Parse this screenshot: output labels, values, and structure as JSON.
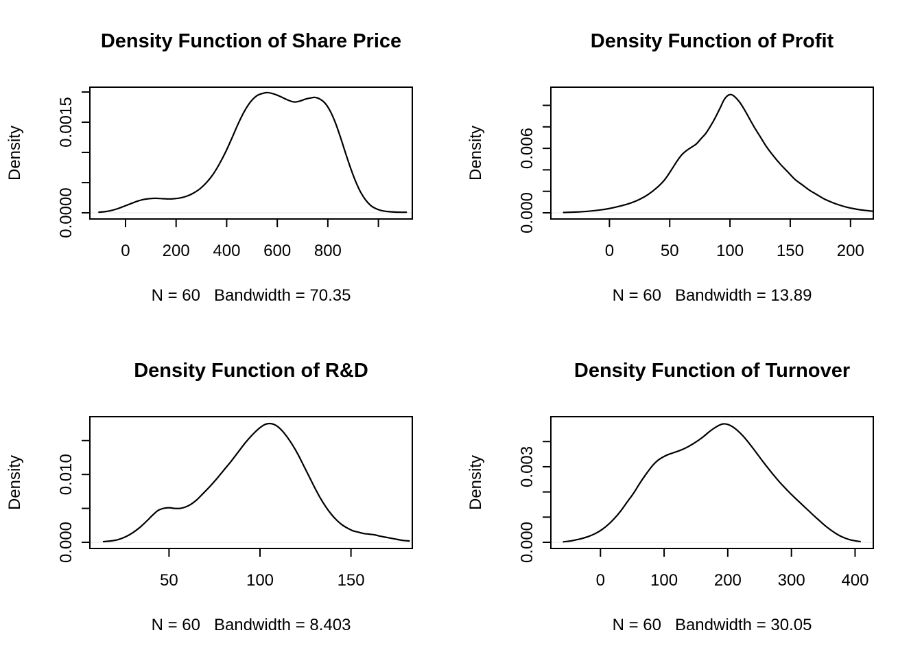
{
  "figure_title": "Density plots 2x2 panel figure",
  "colors": {
    "foreground": "#000000",
    "background": "#ffffff",
    "zero_baseline": "#ededed"
  },
  "chart_data": [
    {
      "id": "share-price",
      "type": "line",
      "title": "Density Function of Share Price",
      "ylabel": "Density",
      "subtitle": "N = 60   Bandwidth = 70.35",
      "n": 60,
      "bandwidth": 70.35,
      "legend": "none",
      "grid": "off",
      "xlim": [
        -141,
        1134
      ],
      "ylim": [
        -0.000102,
        0.00208
      ],
      "x_ticks": [
        {
          "v": 0,
          "label": "0"
        },
        {
          "v": 200,
          "label": "200"
        },
        {
          "v": 400,
          "label": "400"
        },
        {
          "v": 600,
          "label": "600"
        },
        {
          "v": 800,
          "label": "800"
        },
        {
          "v": 1000,
          "label": ""
        }
      ],
      "y_ticks": [
        {
          "v": 0.0,
          "label": "0.0000"
        },
        {
          "v": 0.0005,
          "label": ""
        },
        {
          "v": 0.001,
          "label": ""
        },
        {
          "v": 0.0015,
          "label": "0.0015"
        },
        {
          "v": 0.002,
          "label": ""
        }
      ],
      "curve": [
        [
          -105,
          1e-05
        ],
        [
          -80,
          2e-05
        ],
        [
          -55,
          4e-05
        ],
        [
          -30,
          7e-05
        ],
        [
          -5,
          0.00011
        ],
        [
          20,
          0.00015
        ],
        [
          45,
          0.00019
        ],
        [
          70,
          0.00022
        ],
        [
          95,
          0.000235
        ],
        [
          120,
          0.00024
        ],
        [
          145,
          0.000235
        ],
        [
          170,
          0.00023
        ],
        [
          195,
          0.000235
        ],
        [
          220,
          0.00025
        ],
        [
          245,
          0.00028
        ],
        [
          270,
          0.00033
        ],
        [
          295,
          0.0004
        ],
        [
          320,
          0.0005
        ],
        [
          345,
          0.00063
        ],
        [
          370,
          0.0008
        ],
        [
          395,
          0.001
        ],
        [
          420,
          0.00123
        ],
        [
          445,
          0.00147
        ],
        [
          470,
          0.00168
        ],
        [
          495,
          0.00184
        ],
        [
          520,
          0.00194
        ],
        [
          545,
          0.00198
        ],
        [
          562,
          0.00199
        ],
        [
          585,
          0.00197
        ],
        [
          610,
          0.00193
        ],
        [
          635,
          0.00188
        ],
        [
          660,
          0.00184
        ],
        [
          673,
          0.001835
        ],
        [
          690,
          0.00185
        ],
        [
          710,
          0.00188
        ],
        [
          730,
          0.0019
        ],
        [
          750,
          0.00191
        ],
        [
          770,
          0.00188
        ],
        [
          790,
          0.00181
        ],
        [
          810,
          0.00168
        ],
        [
          830,
          0.00149
        ],
        [
          850,
          0.00125
        ],
        [
          870,
          0.00099
        ],
        [
          890,
          0.00074
        ],
        [
          910,
          0.00052
        ],
        [
          930,
          0.00034
        ],
        [
          950,
          0.00021
        ],
        [
          970,
          0.00012
        ],
        [
          990,
          7e-05
        ],
        [
          1010,
          4e-05
        ],
        [
          1040,
          2e-05
        ],
        [
          1080,
          1e-05
        ],
        [
          1110,
          1e-05
        ]
      ]
    },
    {
      "id": "profit",
      "type": "line",
      "title": "Density Function of Profit",
      "ylabel": "Density",
      "subtitle": "N = 60   Bandwidth = 13.89",
      "n": 60,
      "bandwidth": 13.89,
      "legend": "none",
      "grid": "off",
      "xlim": [
        -48.6,
        218.9
      ],
      "ylim": [
        -0.000575,
        0.011693
      ],
      "x_ticks": [
        {
          "v": 0,
          "label": "0"
        },
        {
          "v": 50,
          "label": "50"
        },
        {
          "v": 100,
          "label": "100"
        },
        {
          "v": 150,
          "label": "150"
        },
        {
          "v": 200,
          "label": "200"
        }
      ],
      "y_ticks": [
        {
          "v": 0.0,
          "label": "0.000"
        },
        {
          "v": 0.002,
          "label": ""
        },
        {
          "v": 0.004,
          "label": ""
        },
        {
          "v": 0.006,
          "label": "0.006"
        },
        {
          "v": 0.008,
          "label": ""
        },
        {
          "v": 0.01,
          "label": ""
        }
      ],
      "curve": [
        [
          -38,
          3e-05
        ],
        [
          -28,
          7e-05
        ],
        [
          -18,
          0.00014
        ],
        [
          -8,
          0.00026
        ],
        [
          0,
          0.0004
        ],
        [
          8,
          0.0006
        ],
        [
          16,
          0.00085
        ],
        [
          24,
          0.0012
        ],
        [
          32,
          0.0017
        ],
        [
          40,
          0.0024
        ],
        [
          46,
          0.0031
        ],
        [
          52,
          0.0041
        ],
        [
          56,
          0.0048
        ],
        [
          60,
          0.0054
        ],
        [
          64,
          0.0058
        ],
        [
          68,
          0.0061
        ],
        [
          72,
          0.0064
        ],
        [
          76,
          0.0069
        ],
        [
          80,
          0.0074
        ],
        [
          84,
          0.0081
        ],
        [
          88,
          0.0089
        ],
        [
          92,
          0.0098
        ],
        [
          95,
          0.0105
        ],
        [
          98,
          0.0109
        ],
        [
          101,
          0.011
        ],
        [
          104,
          0.0108
        ],
        [
          108,
          0.0103
        ],
        [
          112,
          0.0096
        ],
        [
          116,
          0.0088
        ],
        [
          120,
          0.008
        ],
        [
          125,
          0.0071
        ],
        [
          130,
          0.0062
        ],
        [
          136,
          0.0053
        ],
        [
          142,
          0.0045
        ],
        [
          148,
          0.0038
        ],
        [
          154,
          0.0031
        ],
        [
          160,
          0.0026
        ],
        [
          166,
          0.0021
        ],
        [
          172,
          0.0017
        ],
        [
          178,
          0.0013
        ],
        [
          184,
          0.001
        ],
        [
          190,
          0.00075
        ],
        [
          196,
          0.00055
        ],
        [
          202,
          0.0004
        ],
        [
          208,
          0.00028
        ],
        [
          214,
          0.0002
        ],
        [
          218,
          0.00015
        ]
      ]
    },
    {
      "id": "rnd",
      "type": "line",
      "title": "Density Function of R&D",
      "ylabel": "Density",
      "subtitle": "N = 60   Bandwidth = 8.403",
      "n": 60,
      "bandwidth": 8.403,
      "legend": "none",
      "grid": "off",
      "xlim": [
        6.5,
        183.7
      ],
      "ylim": [
        -0.000911,
        0.018522
      ],
      "x_ticks": [
        {
          "v": 50,
          "label": "50"
        },
        {
          "v": 100,
          "label": "100"
        },
        {
          "v": 150,
          "label": "150"
        }
      ],
      "y_ticks": [
        {
          "v": 0.0,
          "label": "0.000"
        },
        {
          "v": 0.005,
          "label": ""
        },
        {
          "v": 0.01,
          "label": "0.010"
        },
        {
          "v": 0.015,
          "label": ""
        }
      ],
      "curve": [
        [
          14,
          0.0001
        ],
        [
          18,
          0.0002
        ],
        [
          22,
          0.0004
        ],
        [
          26,
          0.0008
        ],
        [
          30,
          0.0014
        ],
        [
          34,
          0.0022
        ],
        [
          38,
          0.0032
        ],
        [
          41,
          0.004
        ],
        [
          44,
          0.0047
        ],
        [
          47,
          0.005
        ],
        [
          50,
          0.0051
        ],
        [
          53,
          0.005
        ],
        [
          56,
          0.005
        ],
        [
          59,
          0.0052
        ],
        [
          62,
          0.0056
        ],
        [
          65,
          0.0062
        ],
        [
          68,
          0.007
        ],
        [
          72,
          0.0081
        ],
        [
          76,
          0.0093
        ],
        [
          80,
          0.0106
        ],
        [
          84,
          0.0119
        ],
        [
          88,
          0.0133
        ],
        [
          92,
          0.0147
        ],
        [
          96,
          0.0159
        ],
        [
          100,
          0.0169
        ],
        [
          103,
          0.0174
        ],
        [
          106,
          0.0175
        ],
        [
          109,
          0.0172
        ],
        [
          112,
          0.0165
        ],
        [
          115,
          0.0155
        ],
        [
          118,
          0.0143
        ],
        [
          121,
          0.0129
        ],
        [
          124,
          0.0113
        ],
        [
          127,
          0.0097
        ],
        [
          130,
          0.0081
        ],
        [
          133,
          0.0066
        ],
        [
          136,
          0.0053
        ],
        [
          139,
          0.0042
        ],
        [
          142,
          0.0033
        ],
        [
          145,
          0.0026
        ],
        [
          148,
          0.0021
        ],
        [
          151,
          0.0017
        ],
        [
          154,
          0.0015
        ],
        [
          157,
          0.0013
        ],
        [
          160,
          0.0012
        ],
        [
          163,
          0.0011
        ],
        [
          166,
          0.0009
        ],
        [
          170,
          0.0007
        ],
        [
          174,
          0.0005
        ],
        [
          178,
          0.0003
        ],
        [
          182,
          0.0002
        ]
      ]
    },
    {
      "id": "turnover",
      "type": "line",
      "title": "Density Function of Turnover",
      "ylabel": "Density",
      "subtitle": "N = 60   Bandwidth = 30.05",
      "n": 60,
      "bandwidth": 30.05,
      "legend": "none",
      "grid": "off",
      "xlim": [
        -77.9,
        428.6
      ],
      "ylim": [
        -0.000245,
        0.004987
      ],
      "x_ticks": [
        {
          "v": 0,
          "label": "0"
        },
        {
          "v": 100,
          "label": "100"
        },
        {
          "v": 200,
          "label": "200"
        },
        {
          "v": 300,
          "label": "300"
        },
        {
          "v": 400,
          "label": "400"
        }
      ],
      "y_ticks": [
        {
          "v": 0.0,
          "label": "0.000"
        },
        {
          "v": 0.001,
          "label": ""
        },
        {
          "v": 0.002,
          "label": ""
        },
        {
          "v": 0.003,
          "label": "0.003"
        },
        {
          "v": 0.004,
          "label": ""
        }
      ],
      "curve": [
        [
          -58,
          2e-05
        ],
        [
          -48,
          5e-05
        ],
        [
          -38,
          0.0001
        ],
        [
          -28,
          0.00016
        ],
        [
          -18,
          0.00024
        ],
        [
          -8,
          0.00035
        ],
        [
          2,
          0.0005
        ],
        [
          12,
          0.0007
        ],
        [
          22,
          0.00095
        ],
        [
          32,
          0.00125
        ],
        [
          42,
          0.0016
        ],
        [
          52,
          0.00195
        ],
        [
          62,
          0.00235
        ],
        [
          72,
          0.00272
        ],
        [
          82,
          0.00305
        ],
        [
          90,
          0.00325
        ],
        [
          98,
          0.00338
        ],
        [
          106,
          0.00348
        ],
        [
          114,
          0.00355
        ],
        [
          122,
          0.00362
        ],
        [
          130,
          0.0037
        ],
        [
          138,
          0.0038
        ],
        [
          146,
          0.00392
        ],
        [
          154,
          0.00405
        ],
        [
          162,
          0.0042
        ],
        [
          170,
          0.00437
        ],
        [
          178,
          0.00452
        ],
        [
          186,
          0.00464
        ],
        [
          193,
          0.0047
        ],
        [
          200,
          0.00468
        ],
        [
          208,
          0.00458
        ],
        [
          216,
          0.00442
        ],
        [
          224,
          0.00422
        ],
        [
          232,
          0.00398
        ],
        [
          240,
          0.00372
        ],
        [
          248,
          0.00345
        ],
        [
          256,
          0.00318
        ],
        [
          264,
          0.00292
        ],
        [
          272,
          0.00267
        ],
        [
          280,
          0.00243
        ],
        [
          288,
          0.00221
        ],
        [
          296,
          0.002
        ],
        [
          304,
          0.0018
        ],
        [
          312,
          0.00161
        ],
        [
          320,
          0.00142
        ],
        [
          328,
          0.00123
        ],
        [
          336,
          0.00104
        ],
        [
          344,
          0.00086
        ],
        [
          352,
          0.00068
        ],
        [
          360,
          0.00052
        ],
        [
          368,
          0.00038
        ],
        [
          376,
          0.00026
        ],
        [
          384,
          0.00017
        ],
        [
          392,
          0.0001
        ],
        [
          400,
          6e-05
        ],
        [
          408,
          3e-05
        ]
      ]
    }
  ]
}
